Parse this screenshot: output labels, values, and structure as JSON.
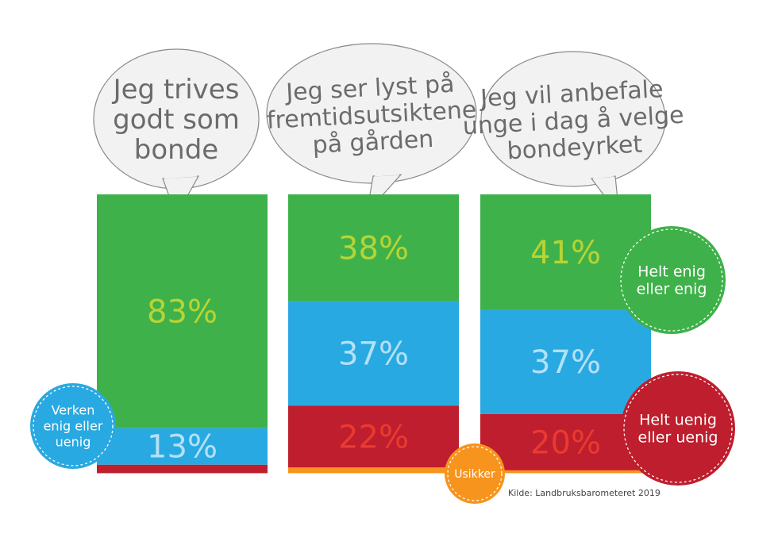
{
  "chart_data": {
    "type": "bar",
    "stacked": true,
    "orientation": "vertical",
    "unit": "%",
    "categories": [
      "Jeg trives godt som bonde",
      "Jeg ser lyst på fremtidsutsiktene på gården",
      "Jeg vil anbefale unge i dag å velge bondeyrket"
    ],
    "category_lines": [
      [
        "Jeg trives",
        "godt som",
        "bonde"
      ],
      [
        "Jeg ser lyst på",
        "fremtidsutsiktene",
        "på gården"
      ],
      [
        "Jeg vil anbefale",
        "unge i dag å velge",
        "bondeyrket"
      ]
    ],
    "series": [
      {
        "name": "Helt enig eller enig",
        "values": [
          83,
          38,
          41
        ],
        "color": "#3fb14a",
        "label_color": "#b8d433",
        "labels": [
          "83%",
          "38%",
          "41%"
        ]
      },
      {
        "name": "Verken enig eller uenig",
        "values": [
          13,
          37,
          37
        ],
        "color": "#29a9e1",
        "label_color": "#b4e1f6",
        "labels": [
          "13%",
          "37%",
          "37%"
        ]
      },
      {
        "name": "Helt uenig eller uenig",
        "values": [
          3,
          22,
          20
        ],
        "color": "#be1e2d",
        "label_color": "#ea3a30",
        "labels": [
          "",
          "22%",
          "20%"
        ]
      },
      {
        "name": "Usikker",
        "values": [
          0,
          2,
          1
        ],
        "color": "#f7941d",
        "label_color": "#ffffff",
        "labels": [
          "",
          "",
          ""
        ]
      }
    ],
    "legend": [
      {
        "key": "agree",
        "lines": [
          "Helt enig",
          "eller enig"
        ],
        "color": "#3fb14a",
        "placement": "right"
      },
      {
        "key": "neutral",
        "lines": [
          "Verken",
          "enig eller",
          "uenig"
        ],
        "color": "#29a9e1",
        "placement": "left"
      },
      {
        "key": "disagree",
        "lines": [
          "Helt uenig",
          "eller uenig"
        ],
        "color": "#be1e2d",
        "placement": "right"
      },
      {
        "key": "unsure",
        "lines": [
          "Usikker"
        ],
        "color": "#f7941d",
        "placement": "bottom"
      }
    ],
    "source": "Kilde: Landbruksbarometeret 2019"
  }
}
